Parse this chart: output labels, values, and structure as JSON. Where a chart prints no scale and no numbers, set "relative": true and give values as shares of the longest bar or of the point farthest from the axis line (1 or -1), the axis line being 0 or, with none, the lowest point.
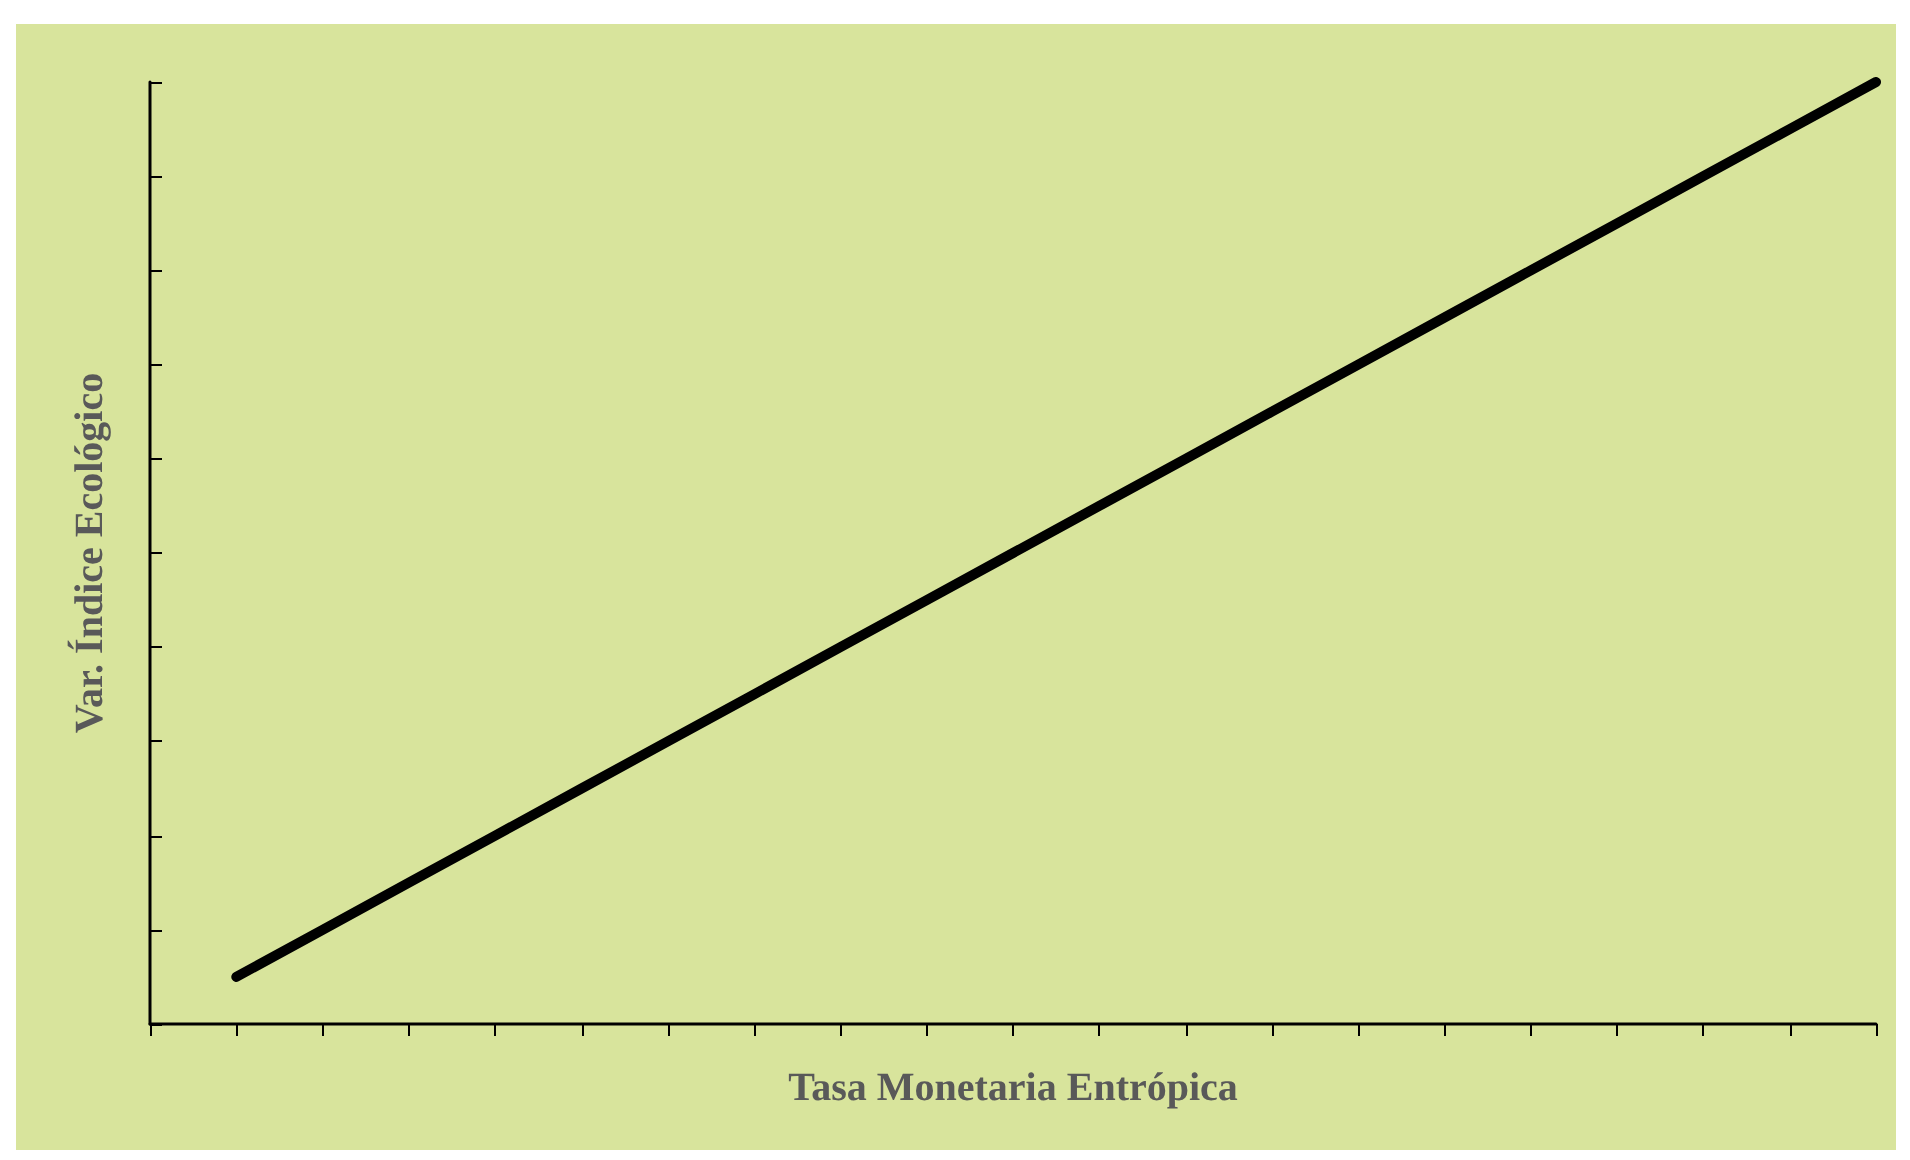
{
  "chart_data": {
    "type": "line",
    "relative": true,
    "xlabel": "Tasa Monetaria Entrópica",
    "ylabel": "Var. Índice Ecológico",
    "categories": [
      null,
      null,
      null,
      null,
      null,
      null,
      null,
      null,
      null,
      null,
      null,
      null,
      null,
      null,
      null,
      null,
      null,
      null,
      null,
      null,
      null
    ],
    "series": [
      {
        "color": "#000000",
        "values": [
          null,
          0.05,
          0.1,
          0.15,
          0.2,
          0.25,
          0.3,
          0.35,
          0.4,
          0.45,
          0.5,
          0.55,
          0.6,
          0.65,
          0.7,
          0.75,
          0.8,
          0.85,
          0.9,
          0.95,
          1
        ]
      }
    ],
    "marker": "none",
    "line_style": "solid"
  }
}
